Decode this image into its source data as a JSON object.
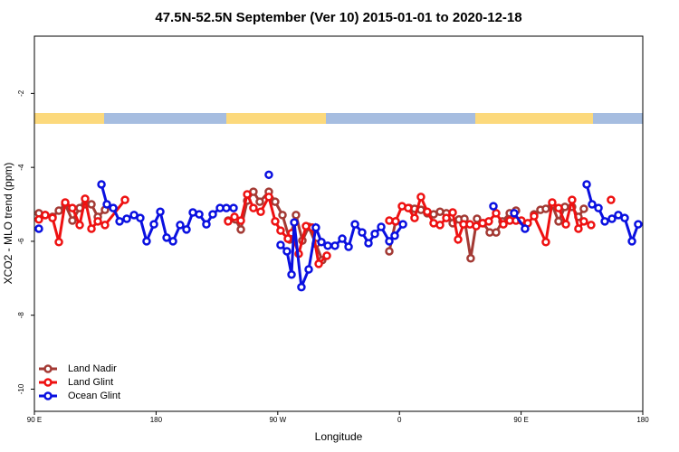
{
  "chart_data": {
    "type": "line",
    "title": "47.5N-52.5N September (Ver 10)   2015-01-01 to 2020-12-18",
    "x_label": "Longitude",
    "y_label": "XCO2 - MLO trend (ppm)",
    "xlim": [
      90,
      540
    ],
    "ylim": [
      -10.6,
      -0.45
    ],
    "xticks": [
      {
        "value": 90,
        "label": "90 E"
      },
      180,
      {
        "value": 270,
        "label": "90 W"
      },
      {
        "value": 360,
        "label": "0"
      },
      {
        "value": 450,
        "label": "90 E"
      },
      {
        "value": 540,
        "label": "180"
      }
    ],
    "yticks": [
      -2,
      -4,
      -6,
      -8,
      -10
    ],
    "legend": "bottom-left",
    "series": [
      {
        "name": "Land Nadir",
        "color": "#a33a34",
        "x": [
          93.3,
          98.0,
          103.4,
          108.1,
          112.8,
          118.1,
          123.5,
          127.5,
          132.2,
          136.9,
          142.2,
          null,
          233.3,
          238.7,
          242.7,
          247.4,
          252.0,
          256.7,
          263.4,
          268.1,
          273.5,
          278.8,
          283.5,
          288.2,
          292.9,
          298.2,
          302.9,
          null,
          352.5,
          357.2,
          null,
          367.2,
          371.2,
          375.9,
          380.6,
          385.3,
          390.0,
          394.7,
          399.4,
          404.0,
          408.1,
          412.7,
          417.4,
          422.1,
          426.8,
          431.5,
          436.2,
          441.6,
          446.2,
          null,
          459.6,
          464.3,
          468.3,
          473.0,
          477.7,
          482.4,
          487.7,
          492.4,
          496.4
        ],
        "values": [
          -5.24,
          -5.29,
          -5.34,
          -5.17,
          -5.0,
          -5.44,
          -5.1,
          -5.0,
          -5.0,
          -5.34,
          -5.15,
          null,
          -5.44,
          -5.41,
          -5.68,
          -4.9,
          -4.66,
          -4.93,
          -4.66,
          -4.93,
          -5.29,
          -5.95,
          -5.29,
          -5.98,
          -5.61,
          -6.07,
          -6.51,
          null,
          -6.27,
          -5.46,
          null,
          -5.1,
          -5.12,
          -5.15,
          -5.24,
          -5.27,
          -5.2,
          -5.24,
          -5.51,
          -5.41,
          -5.39,
          -6.46,
          -5.39,
          -5.51,
          -5.76,
          -5.76,
          -5.46,
          -5.24,
          -5.17,
          null,
          -5.27,
          -5.15,
          -5.12,
          -5.02,
          -5.46,
          -5.07,
          -5.07,
          -5.34,
          -5.12
        ]
      },
      {
        "name": "Land Glint",
        "color": "#ee1111",
        "x": [
          93.3,
          98.0,
          103.4,
          108.1,
          112.8,
          118.1,
          123.5,
          127.5,
          132.2,
          136.9,
          142.2,
          157.0,
          null,
          233.3,
          238.0,
          242.7,
          247.4,
          252.0,
          257.4,
          263.4,
          268.1,
          272.1,
          277.5,
          280.2,
          285.5,
          290.9,
          295.6,
          300.3,
          306.3,
          null,
          352.5,
          357.2,
          361.9,
          366.5,
          371.2,
          375.9,
          380.6,
          385.3,
          390.0,
          394.7,
          399.4,
          403.4,
          407.4,
          412.1,
          416.8,
          421.5,
          426.1,
          431.5,
          436.9,
          441.6,
          446.2,
          450.2,
          454.9,
          459.6,
          468.3,
          473.0,
          477.7,
          483.1,
          487.7,
          492.4,
          496.4,
          501.8,
          null,
          516.5
        ],
        "values": [
          -5.41,
          -5.29,
          -5.37,
          -6.02,
          -4.95,
          -5.1,
          -5.56,
          -4.85,
          -5.66,
          -5.46,
          -5.56,
          -4.88,
          null,
          -5.46,
          -5.34,
          -5.44,
          -4.73,
          -5.1,
          -5.2,
          -4.8,
          -5.46,
          -5.71,
          -5.93,
          -5.78,
          -6.34,
          -5.59,
          -5.63,
          -6.61,
          -6.39,
          null,
          -5.44,
          -5.46,
          -5.05,
          -5.1,
          -5.37,
          -4.8,
          -5.2,
          -5.51,
          -5.56,
          -5.37,
          -5.22,
          -5.95,
          -5.54,
          -5.54,
          -5.59,
          -5.51,
          -5.46,
          -5.24,
          -5.54,
          -5.44,
          -5.44,
          -5.44,
          -5.51,
          -5.32,
          -6.02,
          -4.95,
          -5.1,
          -5.54,
          -4.88,
          -5.66,
          -5.46,
          -5.56,
          null,
          -4.88
        ]
      },
      {
        "name": "Ocean Glint",
        "color": "#0a10e0",
        "x": [
          93.3,
          null,
          139.6,
          143.6,
          148.3,
          153.0,
          158.3,
          163.7,
          168.3,
          173.0,
          178.4,
          183.1,
          187.8,
          192.5,
          197.8,
          202.5,
          207.2,
          211.9,
          217.2,
          221.9,
          227.3,
          232.0,
          237.3,
          null,
          263.4,
          null,
          272.1,
          276.8,
          280.2,
          282.2,
          287.5,
          292.9,
          298.2,
          302.3,
          307.0,
          312.3,
          317.7,
          322.4,
          327.1,
          332.4,
          337.1,
          341.8,
          346.5,
          352.5,
          356.5,
          362.6,
          null,
          429.5,
          null,
          444.9,
          452.9,
          null,
          498.5,
          502.5,
          507.2,
          511.9,
          517.2,
          521.9,
          526.6,
          532.0,
          536.6
        ],
        "values": [
          -5.66,
          null,
          -4.46,
          -5.0,
          -5.1,
          -5.46,
          -5.39,
          -5.29,
          -5.37,
          -6.0,
          -5.54,
          -5.2,
          -5.9,
          -6.0,
          -5.56,
          -5.68,
          -5.22,
          -5.27,
          -5.54,
          -5.27,
          -5.1,
          -5.1,
          -5.1,
          null,
          -4.2,
          null,
          -6.1,
          -6.27,
          -6.9,
          -5.49,
          -7.24,
          -6.76,
          -5.63,
          -6.02,
          -6.12,
          -6.12,
          -5.93,
          -6.15,
          -5.54,
          -5.76,
          -6.05,
          -5.8,
          -5.61,
          -6.0,
          -5.85,
          -5.54,
          null,
          -5.05,
          null,
          -5.24,
          -5.66,
          null,
          -4.46,
          -5.0,
          -5.1,
          -5.46,
          -5.39,
          -5.29,
          -5.37,
          -6.0,
          -5.54
        ]
      }
    ]
  }
}
